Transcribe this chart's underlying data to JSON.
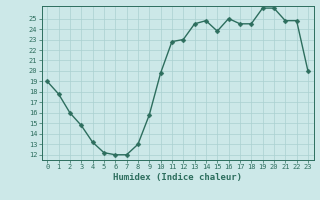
{
  "xlabel": "Humidex (Indice chaleur)",
  "x_data": [
    0,
    1,
    2,
    3,
    4,
    5,
    6,
    7,
    8,
    9,
    10,
    11,
    12,
    13,
    14,
    15,
    16,
    17,
    18,
    19,
    20,
    21,
    22,
    23
  ],
  "y_data": [
    19.0,
    17.8,
    16.0,
    14.8,
    13.2,
    12.2,
    12.0,
    12.0,
    13.0,
    15.8,
    19.8,
    22.8,
    23.0,
    24.5,
    24.8,
    23.8,
    25.0,
    24.5,
    24.5,
    26.0,
    26.0,
    24.8,
    24.8,
    20.0
  ],
  "line_color": "#2d6e5e",
  "bg_color": "#cce8e8",
  "grid_color": "#aad0d0",
  "ylim_min": 11.5,
  "ylim_max": 26.2,
  "xlim_min": -0.5,
  "xlim_max": 23.5,
  "yticks": [
    12,
    13,
    14,
    15,
    16,
    17,
    18,
    19,
    20,
    21,
    22,
    23,
    24,
    25
  ],
  "xticks": [
    0,
    1,
    2,
    3,
    4,
    5,
    6,
    7,
    8,
    9,
    10,
    11,
    12,
    13,
    14,
    15,
    16,
    17,
    18,
    19,
    20,
    21,
    22,
    23
  ],
  "marker_size": 2.5,
  "linewidth": 1.0,
  "tick_fontsize": 5.0,
  "xlabel_fontsize": 6.5,
  "xlabel_fontweight": "bold"
}
